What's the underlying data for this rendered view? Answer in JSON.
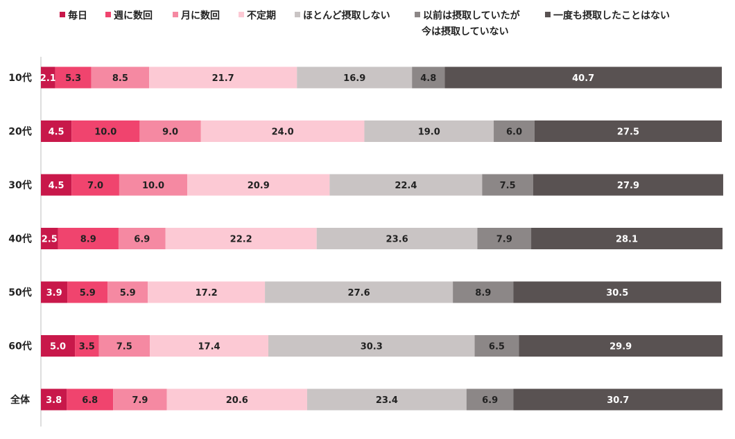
{
  "chart_data": {
    "type": "bar",
    "orientation": "horizontal",
    "stacked": true,
    "title": "",
    "xlabel": "",
    "ylabel": "",
    "xlim": [
      0,
      100
    ],
    "grid": false,
    "legend_position": "top",
    "categories": [
      "10代",
      "20代",
      "30代",
      "40代",
      "50代",
      "60代",
      "全体"
    ],
    "series": [
      {
        "name": "毎日",
        "color": "#C8184A",
        "text_color": "#ffffff",
        "values": [
          2.1,
          4.5,
          4.5,
          2.5,
          3.9,
          5.0,
          3.8
        ]
      },
      {
        "name": "週に数回",
        "color": "#F0446E",
        "text_color": "#222222",
        "values": [
          5.3,
          10.0,
          7.0,
          8.9,
          5.9,
          3.5,
          6.8
        ]
      },
      {
        "name": "月に数回",
        "color": "#F589A2",
        "text_color": "#222222",
        "values": [
          8.5,
          9.0,
          10.0,
          6.9,
          5.9,
          7.5,
          7.9
        ]
      },
      {
        "name": "不定期",
        "color": "#FCC9D4",
        "text_color": "#222222",
        "values": [
          21.7,
          24.0,
          20.9,
          22.2,
          17.2,
          17.4,
          20.6
        ]
      },
      {
        "name": "ほとんど摂取しない",
        "color": "#C9C4C4",
        "text_color": "#222222",
        "values": [
          16.9,
          19.0,
          22.4,
          23.6,
          27.6,
          30.3,
          23.4
        ]
      },
      {
        "name_lines": [
          "以前は摂取していたが",
          "今は摂取していない"
        ],
        "color": "#8C8787",
        "text_color": "#222222",
        "values": [
          4.8,
          6.0,
          7.5,
          7.9,
          8.9,
          6.5,
          6.9
        ]
      },
      {
        "name": "一度も摂取したことはない",
        "color": "#595252",
        "text_color": "#ffffff",
        "values": [
          40.7,
          27.5,
          27.9,
          28.1,
          30.5,
          29.9,
          30.7
        ]
      }
    ]
  }
}
